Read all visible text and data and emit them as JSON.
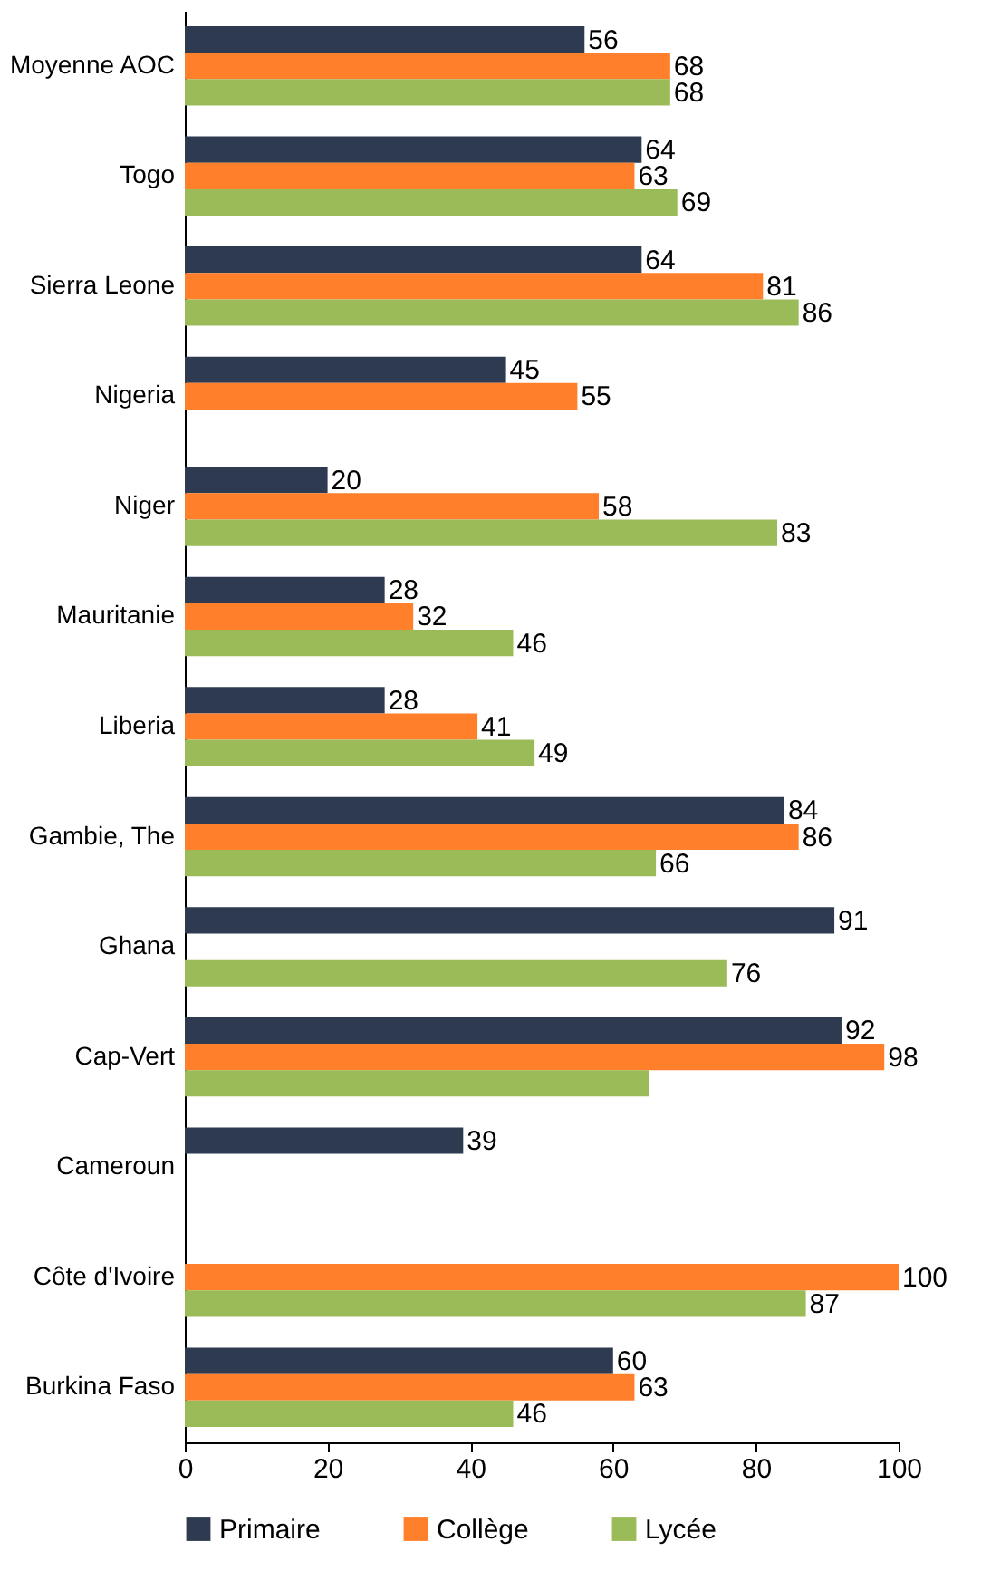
{
  "chart_data": {
    "type": "bar",
    "orientation": "horizontal",
    "categories": [
      "Moyenne AOC",
      "Togo",
      "Sierra Leone",
      "Nigeria",
      "Niger",
      "Mauritanie",
      "Liberia",
      "Gambie, The",
      "Ghana",
      "Cap-Vert",
      "Cameroun",
      "Côte d'Ivoire",
      "Burkina Faso"
    ],
    "series": [
      {
        "name": "Primaire",
        "color": "#2e3a4f",
        "values": [
          56,
          64,
          64,
          45,
          20,
          28,
          28,
          84,
          91,
          92,
          39,
          null,
          60
        ],
        "value_labels": [
          "56",
          "64",
          "64",
          "45",
          "20",
          "28",
          "28",
          "84",
          "91",
          "92",
          "39",
          null,
          "60"
        ]
      },
      {
        "name": "Collège",
        "color": "#ff7f2a",
        "values": [
          68,
          63,
          81,
          55,
          58,
          32,
          41,
          86,
          null,
          98,
          null,
          100,
          63
        ],
        "value_labels": [
          "68",
          "63",
          "81",
          "55",
          "58",
          "32",
          "41",
          "86",
          null,
          "98",
          null,
          "100",
          "63"
        ]
      },
      {
        "name": "Lycée",
        "color": "#9bbb59",
        "values": [
          68,
          69,
          86,
          null,
          83,
          46,
          49,
          66,
          76,
          65,
          null,
          87,
          46
        ],
        "value_labels": [
          "68",
          "69",
          "86",
          null,
          "83",
          "46",
          "49",
          "66",
          "76",
          null,
          null,
          "87",
          "46"
        ]
      }
    ],
    "xlim": [
      0,
      100
    ],
    "xticks": [
      0,
      20,
      40,
      60,
      80,
      100
    ],
    "grid": false,
    "legend": "bottom"
  }
}
